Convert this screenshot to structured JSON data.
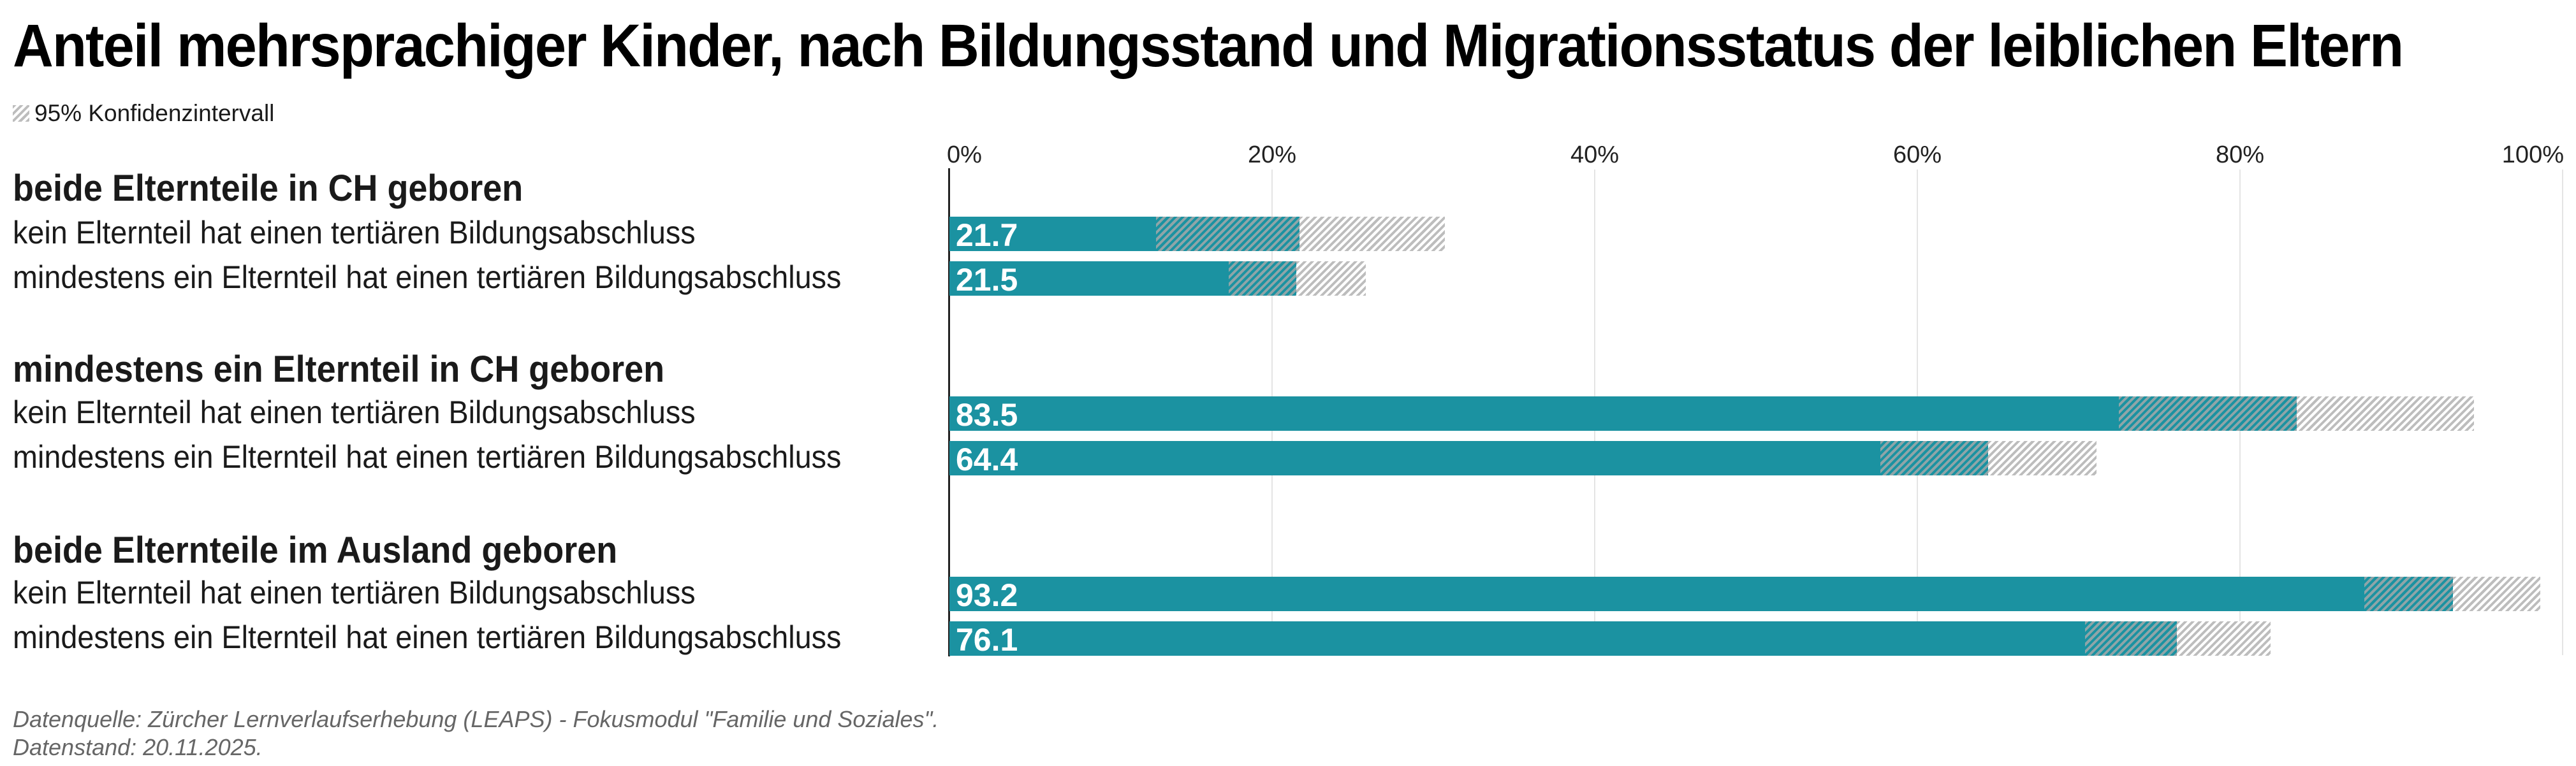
{
  "title": "Anteil mehrsprachiger Kinder, nach Bildungsstand und Migrationsstatus der leiblichen Eltern",
  "legend": {
    "label": "95% Konfidenzintervall",
    "icon": "hatched-swatch-icon"
  },
  "colors": {
    "bar": "#1b92a1",
    "ci_hatch_on_bar": "#8fa5a8",
    "ci_hatch": "#bdbdbd",
    "axis": "#222222",
    "grid": "#e4e4e4",
    "footer": "#666666"
  },
  "footer": {
    "source": "Datenquelle: Zürcher Lernverlaufserhebung (LEAPS) - Fokusmodul \"Familie und Soziales\".",
    "date": "Datenstand: 20.11.2025."
  },
  "chart_data": {
    "type": "bar",
    "orientation": "horizontal",
    "title": "Anteil mehrsprachiger Kinder, nach Bildungsstand und Migrationsstatus der leiblichen Eltern",
    "xlabel": "",
    "ylabel": "",
    "xlim": [
      0,
      100
    ],
    "x_ticks": [
      "0%",
      "20%",
      "40%",
      "60%",
      "80%",
      "100%"
    ],
    "x_tick_values": [
      0,
      20,
      40,
      60,
      80,
      100
    ],
    "grid": true,
    "legend": {
      "entries": [
        "95% Konfidenzintervall"
      ],
      "position": "top-left"
    },
    "groups": [
      {
        "heading": "beide Elternteile in CH geboren",
        "rows": [
          {
            "label": "kein Elternteil hat einen tertiären Bildungsabschluss",
            "value": 21.7,
            "ci_low": 12.8,
            "ci_high": 30.7,
            "value_label": "21.7"
          },
          {
            "label": "mindestens ein Elternteil hat einen tertiären Bildungsabschluss",
            "value": 21.5,
            "ci_low": 17.3,
            "ci_high": 25.8,
            "value_label": "21.5"
          }
        ]
      },
      {
        "heading": "mindestens ein Elternteil in CH geboren",
        "rows": [
          {
            "label": "kein Elternteil hat einen tertiären Bildungsabschluss",
            "value": 83.5,
            "ci_low": 72.5,
            "ci_high": 94.5,
            "value_label": "83.5"
          },
          {
            "label": "mindestens ein Elternteil hat einen tertiären Bildungsabschluss",
            "value": 64.4,
            "ci_low": 57.7,
            "ci_high": 71.1,
            "value_label": "64.4"
          }
        ]
      },
      {
        "heading": "beide Elternteile im Ausland geboren",
        "rows": [
          {
            "label": "kein Elternteil hat einen tertiären Bildungsabschluss",
            "value": 93.2,
            "ci_low": 87.7,
            "ci_high": 98.6,
            "value_label": "93.2"
          },
          {
            "label": "mindestens ein Elternteil hat einen tertiären Bildungsabschluss",
            "value": 76.1,
            "ci_low": 70.4,
            "ci_high": 81.9,
            "value_label": "76.1"
          }
        ]
      }
    ]
  }
}
